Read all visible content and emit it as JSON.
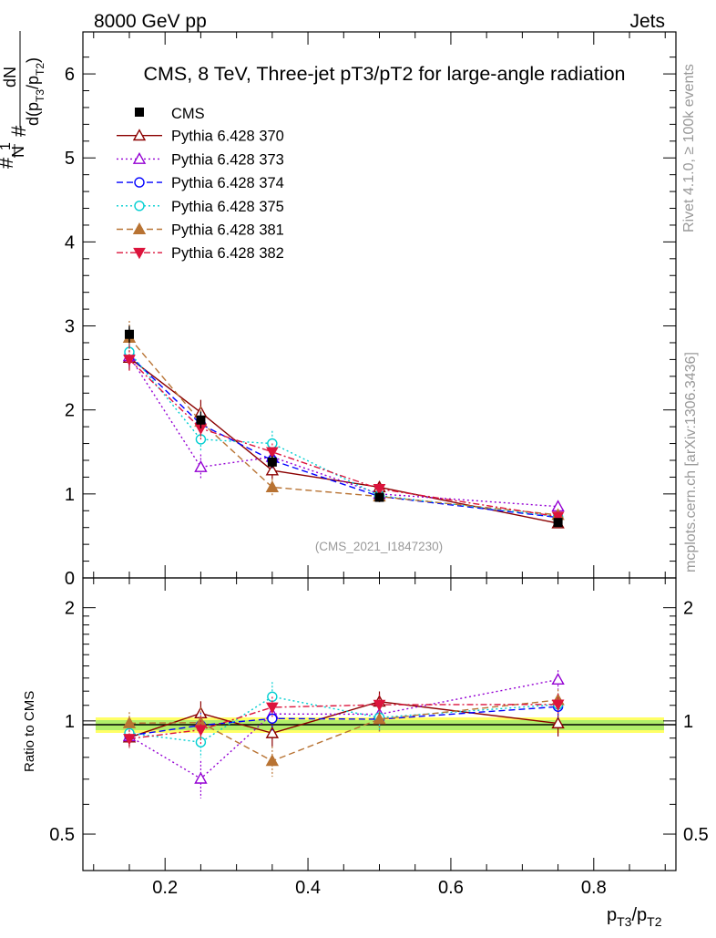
{
  "header": {
    "left": "8000 GeV pp",
    "right": "Jets",
    "title": "CMS, 8 TeV, Three-jet pT3/pT2 for large-angle radiation",
    "analysis_id": "(CMS_2021_I1847230)",
    "side_rivet": "Rivet 4.1.0, ≥ 100k events",
    "side_mcplots": "mcplots.cern.ch [arXiv:1306.3436]"
  },
  "chart_data": {
    "type": "line",
    "title": "CMS, 8 TeV, Three-jet pT3/pT2 for large-angle radiation",
    "xlabel": "pT3/pT2",
    "ylabel": "1/N dN/d(pT3/pT2)",
    "ratio_ylabel": "Ratio to CMS",
    "xlim": [
      0.085,
      0.915
    ],
    "ylim": [
      0,
      6.5
    ],
    "ratio_ylim": [
      0.4,
      2.4
    ],
    "x": [
      0.15,
      0.25,
      0.35,
      0.5,
      0.75
    ],
    "x_ticks": [
      "0.2",
      "0.4",
      "0.6",
      "0.8"
    ],
    "x_tick_values": [
      0.2,
      0.4,
      0.6,
      0.8
    ],
    "y_ticks": [
      "0",
      "1",
      "2",
      "3",
      "4",
      "5",
      "6"
    ],
    "y_tick_values": [
      0,
      1,
      2,
      3,
      4,
      5,
      6
    ],
    "ratio_ticks": [
      "0.5",
      "1",
      "2"
    ],
    "ratio_tick_values": [
      0.5,
      1,
      2
    ],
    "data": {
      "name": "CMS",
      "values": [
        2.9,
        1.88,
        1.38,
        0.96,
        0.66
      ],
      "errors": [
        0.1,
        0.1,
        0.07,
        0.05,
        0.03
      ],
      "color": "#000000"
    },
    "series": [
      {
        "name": "Pythia 6.428 370",
        "values": [
          2.62,
          1.97,
          1.28,
          1.08,
          0.65
        ],
        "errors": [
          0.15,
          0.15,
          0.1,
          0.07,
          0.05
        ],
        "color": "#8b0000",
        "dash": "",
        "marker": "triangle-open"
      },
      {
        "name": "Pythia 6.428 373",
        "values": [
          2.64,
          1.32,
          1.44,
          1.0,
          0.85
        ],
        "errors": [
          0.15,
          0.15,
          0.1,
          0.07,
          0.05
        ],
        "color": "#9400d3",
        "dash": "2,3",
        "marker": "triangle-open"
      },
      {
        "name": "Pythia 6.428 374",
        "values": [
          2.65,
          1.83,
          1.4,
          0.97,
          0.72
        ],
        "errors": [
          0.15,
          0.15,
          0.1,
          0.07,
          0.05
        ],
        "color": "#0000ff",
        "dash": "7,4",
        "marker": "circle-open"
      },
      {
        "name": "Pythia 6.428 375",
        "values": [
          2.69,
          1.65,
          1.6,
          0.98,
          0.73
        ],
        "errors": [
          0.15,
          0.15,
          0.15,
          0.07,
          0.05
        ],
        "color": "#00ced1",
        "dash": "2,3",
        "marker": "circle-open"
      },
      {
        "name": "Pythia 6.428 381",
        "values": [
          2.86,
          1.86,
          1.08,
          0.97,
          0.75
        ],
        "errors": [
          0.2,
          0.18,
          0.1,
          0.07,
          0.05
        ],
        "color": "#b87333",
        "dash": "7,4",
        "marker": "triangle"
      },
      {
        "name": "Pythia 6.428 382",
        "values": [
          2.6,
          1.78,
          1.5,
          1.06,
          0.73
        ],
        "errors": [
          0.15,
          0.15,
          0.1,
          0.07,
          0.05
        ],
        "color": "#dc143c",
        "dash": "7,3,2,3",
        "marker": "triangle-down"
      }
    ]
  }
}
